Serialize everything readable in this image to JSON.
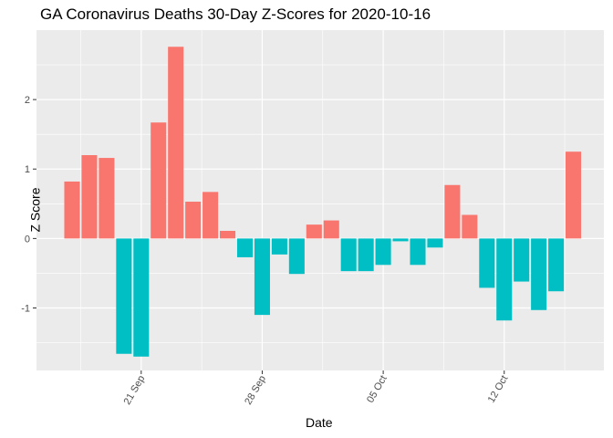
{
  "chart_data": {
    "type": "bar",
    "title": "GA Coronavirus Deaths 30-Day Z-Scores for 2020-10-16",
    "xlabel": "Date",
    "ylabel": "Z Score",
    "x": [
      "2020-09-17",
      "2020-09-18",
      "2020-09-19",
      "2020-09-20",
      "2020-09-21",
      "2020-09-22",
      "2020-09-23",
      "2020-09-24",
      "2020-09-25",
      "2020-09-26",
      "2020-09-27",
      "2020-09-28",
      "2020-09-29",
      "2020-09-30",
      "2020-10-01",
      "2020-10-02",
      "2020-10-03",
      "2020-10-04",
      "2020-10-05",
      "2020-10-06",
      "2020-10-07",
      "2020-10-08",
      "2020-10-09",
      "2020-10-10",
      "2020-10-11",
      "2020-10-12",
      "2020-10-13",
      "2020-10-14",
      "2020-10-15",
      "2020-10-16"
    ],
    "values": [
      0.82,
      1.2,
      1.16,
      -1.66,
      -1.7,
      1.67,
      2.76,
      0.53,
      0.67,
      0.11,
      -0.27,
      -1.1,
      -0.23,
      -0.51,
      0.2,
      0.26,
      -0.47,
      -0.47,
      -0.38,
      -0.04,
      -0.38,
      -0.13,
      0.77,
      0.34,
      -0.71,
      -1.18,
      -0.62,
      -1.03,
      -0.76,
      1.25
    ],
    "positive_color": "#F8766D",
    "negative_color": "#00BFC4",
    "panel_color": "#EBEBEB",
    "grid_color": "#FFFFFF",
    "ylim": [
      -1.9,
      3.0
    ],
    "y_ticks": [
      -1,
      0,
      1,
      2
    ],
    "y_tick_labels": [
      "-1",
      "0",
      "1",
      "2"
    ],
    "x_ticks": [
      "2020-09-21",
      "2020-09-28",
      "2020-10-05",
      "2020-10-12"
    ],
    "x_tick_labels": [
      "21 Sep",
      "28 Sep",
      "05 Oct",
      "12 Oct"
    ],
    "legend": "none",
    "grid": true
  }
}
